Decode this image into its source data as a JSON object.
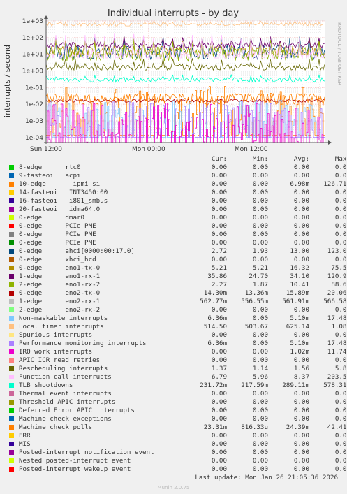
{
  "chart_data": {
    "type": "line",
    "title": "Individual interrupts - by day",
    "ylabel": "interrupts / second",
    "xlabel": "",
    "y_scale": "log",
    "ylim": [
      5e-05,
      1000
    ],
    "y_ticks": [
      {
        "v": 1000,
        "label": "1e+03"
      },
      {
        "v": 100,
        "label": "1e+02"
      },
      {
        "v": 10,
        "label": "1e+01"
      },
      {
        "v": 1,
        "label": "1e+00"
      },
      {
        "v": 0.1,
        "label": "1e-01"
      },
      {
        "v": 0.01,
        "label": "1e-02"
      },
      {
        "v": 0.001,
        "label": "1e-03"
      },
      {
        "v": 0.0001,
        "label": "1e-04"
      }
    ],
    "x_range_hours": [
      0,
      32.6
    ],
    "x_ticks": [
      {
        "h": 0,
        "label": "Sun 12:00"
      },
      {
        "h": 12,
        "label": "Mon 00:00"
      },
      {
        "h": 24,
        "label": "Mon 12:00"
      }
    ],
    "grid": true,
    "side_label": "RRDTOOL / TOBI OETIKER"
  },
  "legend": {
    "headers": [
      "Cur:",
      "Min:",
      "Avg:",
      "Max:"
    ],
    "rows": [
      {
        "name": "8-edge      rtc0",
        "color": "#00cc00",
        "cur": "0.00",
        "min": "0.00",
        "avg": "0.00",
        "max": "0.00"
      },
      {
        "name": "9-fasteoi   acpi",
        "color": "#0066b3",
        "cur": "0.00",
        "min": "0.00",
        "avg": "0.00",
        "max": "0.00"
      },
      {
        "name": "10-edge       ipmi_si",
        "color": "#ff8000",
        "cur": "0.00",
        "min": "0.00",
        "avg": "6.98m",
        "max": "126.71m"
      },
      {
        "name": "14-fasteoi   INT3450:00",
        "color": "#ffcc00",
        "cur": "0.00",
        "min": "0.00",
        "avg": "0.00",
        "max": "0.00"
      },
      {
        "name": "16-fasteoi   i801_smbus",
        "color": "#330099",
        "cur": "0.00",
        "min": "0.00",
        "avg": "0.00",
        "max": "0.00"
      },
      {
        "name": "20-fasteoi   idma64.0",
        "color": "#990099",
        "cur": "0.00",
        "min": "0.00",
        "avg": "0.00",
        "max": "0.00"
      },
      {
        "name": "0-edge      dmar0",
        "color": "#ccff00",
        "cur": "0.00",
        "min": "0.00",
        "avg": "0.00",
        "max": "0.00"
      },
      {
        "name": "0-edge      PCIe PME",
        "color": "#ff0000",
        "cur": "0.00",
        "min": "0.00",
        "avg": "0.00",
        "max": "0.00"
      },
      {
        "name": "0-edge      PCIe PME",
        "color": "#808080",
        "cur": "0.00",
        "min": "0.00",
        "avg": "0.00",
        "max": "0.00"
      },
      {
        "name": "0-edge      PCIe PME",
        "color": "#008f00",
        "cur": "0.00",
        "min": "0.00",
        "avg": "0.00",
        "max": "0.00"
      },
      {
        "name": "0-edge      ahci[0000:00:17.0]",
        "color": "#00487d",
        "cur": "2.72",
        "min": "1.93",
        "avg": "13.00",
        "max": "123.05"
      },
      {
        "name": "0-edge      xhci_hcd",
        "color": "#b35a00",
        "cur": "0.00",
        "min": "0.00",
        "avg": "0.00",
        "max": "0.00"
      },
      {
        "name": "0-edge      eno1-tx-0",
        "color": "#b38f00",
        "cur": "5.21",
        "min": "5.21",
        "avg": "16.32",
        "max": "75.59"
      },
      {
        "name": "1-edge      eno1-rx-1",
        "color": "#6b006b",
        "cur": "35.86",
        "min": "24.70",
        "avg": "34.10",
        "max": "120.96"
      },
      {
        "name": "2-edge      eno1-rx-2",
        "color": "#8fb300",
        "cur": "2.27",
        "min": "1.87",
        "avg": "10.41",
        "max": "88.69"
      },
      {
        "name": "0-edge      eno2-tx-0",
        "color": "#b30000",
        "cur": "14.30m",
        "min": "13.36m",
        "avg": "15.89m",
        "max": "20.06m"
      },
      {
        "name": "1-edge      eno2-rx-1",
        "color": "#bebebe",
        "cur": "562.77m",
        "min": "556.55m",
        "avg": "561.91m",
        "max": "566.58m"
      },
      {
        "name": "2-edge      eno2-rx-2",
        "color": "#80ff80",
        "cur": "0.00",
        "min": "0.00",
        "avg": "0.00",
        "max": "0.00"
      },
      {
        "name": "Non-maskable interrupts",
        "color": "#80c9ff",
        "cur": "6.36m",
        "min": "0.00",
        "avg": "5.10m",
        "max": "17.48m"
      },
      {
        "name": "Local timer interrupts",
        "color": "#ffc080",
        "cur": "514.50",
        "min": "503.67",
        "avg": "625.14",
        "max": "1.08k"
      },
      {
        "name": "Spurious interrupts",
        "color": "#ffe680",
        "cur": "0.00",
        "min": "0.00",
        "avg": "0.00",
        "max": "0.00"
      },
      {
        "name": "Performance monitoring interrupts",
        "color": "#aa80ff",
        "cur": "6.36m",
        "min": "0.00",
        "avg": "5.10m",
        "max": "17.48m"
      },
      {
        "name": "IRQ work interrupts",
        "color": "#ee00cc",
        "cur": "0.00",
        "min": "0.00",
        "avg": "1.02m",
        "max": "11.74m"
      },
      {
        "name": "APIC ICR read retries",
        "color": "#ff8080",
        "cur": "0.00",
        "min": "0.00",
        "avg": "0.00",
        "max": "0.00"
      },
      {
        "name": "Rescheduling interrupts",
        "color": "#666600",
        "cur": "1.37",
        "min": "1.14",
        "avg": "1.56",
        "max": "5.87"
      },
      {
        "name": "Function call interrupts",
        "color": "#ffbfff",
        "cur": "6.79",
        "min": "5.96",
        "avg": "8.37",
        "max": "203.53"
      },
      {
        "name": "TLB shootdowns",
        "color": "#00ffcc",
        "cur": "231.72m",
        "min": "217.59m",
        "avg": "289.11m",
        "max": "578.31m"
      },
      {
        "name": "Thermal event interrupts",
        "color": "#cc6699",
        "cur": "0.00",
        "min": "0.00",
        "avg": "0.00",
        "max": "0.00"
      },
      {
        "name": "Threshold APIC interrupts",
        "color": "#999900",
        "cur": "0.00",
        "min": "0.00",
        "avg": "0.00",
        "max": "0.00"
      },
      {
        "name": "Deferred Error APIC interrupts",
        "color": "#00cc00",
        "cur": "0.00",
        "min": "0.00",
        "avg": "0.00",
        "max": "0.00"
      },
      {
        "name": "Machine check exceptions",
        "color": "#0066b3",
        "cur": "0.00",
        "min": "0.00",
        "avg": "0.00",
        "max": "0.00"
      },
      {
        "name": "Machine check polls",
        "color": "#ff8000",
        "cur": "23.31m",
        "min": "816.33u",
        "avg": "24.39m",
        "max": "42.41m"
      },
      {
        "name": "ERR",
        "color": "#ffcc00",
        "cur": "0.00",
        "min": "0.00",
        "avg": "0.00",
        "max": "0.00"
      },
      {
        "name": "MIS",
        "color": "#330099",
        "cur": "0.00",
        "min": "0.00",
        "avg": "0.00",
        "max": "0.00"
      },
      {
        "name": "Posted-interrupt notification event",
        "color": "#990099",
        "cur": "0.00",
        "min": "0.00",
        "avg": "0.00",
        "max": "0.00"
      },
      {
        "name": "Nested posted-interrupt event",
        "color": "#ccff00",
        "cur": "0.00",
        "min": "0.00",
        "avg": "0.00",
        "max": "0.00"
      },
      {
        "name": "Posted-interrupt wakeup event",
        "color": "#ff0000",
        "cur": "0.00",
        "min": "0.00",
        "avg": "0.00",
        "max": "0.00"
      }
    ]
  },
  "footer": {
    "last_update": "Last update: Mon Jan 26 21:05:36 2026",
    "munin": "Munin 2.0.75"
  }
}
